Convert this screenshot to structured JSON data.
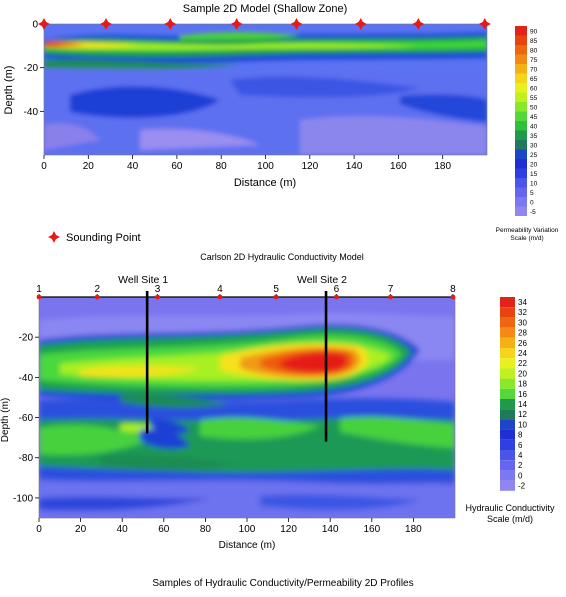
{
  "chart_data": [
    {
      "type": "heatmap",
      "title": "Sample 2D Model (Shallow Zone)",
      "xlabel": "Distance (m)",
      "ylabel": "Depth (m)",
      "xlim": [
        0,
        200
      ],
      "ylim": [
        -60,
        0
      ],
      "x_ticks": [
        0,
        20,
        40,
        60,
        80,
        100,
        120,
        140,
        160,
        180
      ],
      "y_ticks": [
        0,
        -20,
        -40
      ],
      "sounding_points_x": [
        0,
        28,
        57,
        87,
        114,
        143,
        169,
        199
      ],
      "legend_marker_label": "Sounding Point",
      "colorbar": {
        "values": [
          90,
          85,
          80,
          75,
          70,
          65,
          60,
          55,
          50,
          45,
          40,
          35,
          30,
          25,
          20,
          15,
          10,
          5,
          0,
          -5
        ],
        "label_line1": "Permeability Variation",
        "label_line2": "Scale (m/d)"
      }
    },
    {
      "type": "heatmap",
      "title": "Carlson 2D Hydraulic Conductivity Model",
      "xlabel": "Distance (m)",
      "ylabel": "Depth (m)",
      "xlim": [
        0,
        200
      ],
      "ylim": [
        -110,
        0
      ],
      "x_ticks": [
        0,
        20,
        40,
        60,
        80,
        100,
        120,
        140,
        160,
        180
      ],
      "y_ticks": [
        -20,
        -40,
        -60,
        -80,
        -100
      ],
      "points": [
        {
          "label": "1",
          "x": 0
        },
        {
          "label": "2",
          "x": 28
        },
        {
          "label": "3",
          "x": 57
        },
        {
          "label": "4",
          "x": 87
        },
        {
          "label": "5",
          "x": 114
        },
        {
          "label": "6",
          "x": 143
        },
        {
          "label": "7",
          "x": 169
        },
        {
          "label": "8",
          "x": 199
        }
      ],
      "wells": [
        {
          "name": "Well Site 1",
          "x": 52,
          "bottom_depth": -68
        },
        {
          "name": "Well Site 2",
          "x": 138,
          "bottom_depth": -72
        }
      ],
      "colorbar": {
        "values": [
          34,
          32,
          30,
          28,
          26,
          24,
          22,
          20,
          18,
          16,
          14,
          12,
          10,
          8,
          6,
          4,
          2,
          0,
          -2
        ],
        "label_line1": "Hydraulic Conductivity",
        "label_line2": "Scale (m/d)"
      }
    }
  ],
  "caption": "Samples of Hydraulic Conductivity/Permeability 2D Profiles"
}
